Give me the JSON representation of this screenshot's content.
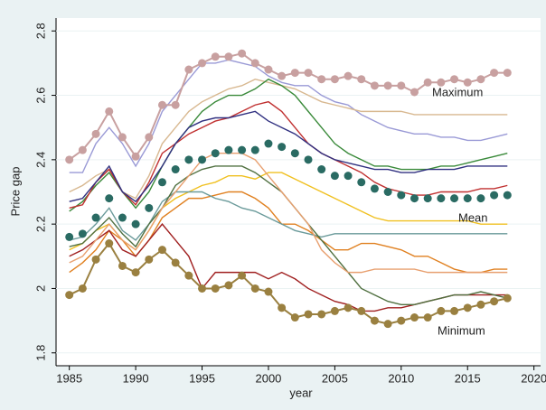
{
  "chart_data": {
    "type": "line",
    "x_label": "year",
    "y_label": "Price gap",
    "x": [
      1985,
      1986,
      1987,
      1988,
      1989,
      1990,
      1991,
      1992,
      1993,
      1994,
      1995,
      1996,
      1997,
      1998,
      1999,
      2000,
      2001,
      2002,
      2003,
      2004,
      2005,
      2006,
      2007,
      2008,
      2009,
      2010,
      2011,
      2012,
      2013,
      2014,
      2015,
      2016,
      2017,
      2018
    ],
    "xlim": [
      1984,
      2020.5
    ],
    "xticks": [
      1985,
      1990,
      1995,
      2000,
      2005,
      2010,
      2015,
      2020
    ],
    "ylim": [
      1.76,
      2.84
    ],
    "yticks": [
      1.8,
      2,
      2.2,
      2.4,
      2.6,
      2.8
    ],
    "series": [
      {
        "color": "#9a9ad6",
        "values": [
          2.36,
          2.36,
          2.45,
          2.5,
          2.45,
          2.38,
          2.45,
          2.55,
          2.6,
          2.65,
          2.7,
          2.7,
          2.71,
          2.7,
          2.69,
          2.66,
          2.64,
          2.63,
          2.63,
          2.6,
          2.58,
          2.57,
          2.54,
          2.52,
          2.5,
          2.49,
          2.48,
          2.48,
          2.47,
          2.47,
          2.46,
          2.46,
          2.47,
          2.48
        ]
      },
      {
        "color": "#d8b890",
        "values": [
          2.3,
          2.32,
          2.35,
          2.37,
          2.3,
          2.28,
          2.35,
          2.45,
          2.5,
          2.55,
          2.58,
          2.6,
          2.62,
          2.63,
          2.65,
          2.64,
          2.63,
          2.62,
          2.6,
          2.58,
          2.57,
          2.56,
          2.55,
          2.55,
          2.55,
          2.55,
          2.54,
          2.54,
          2.54,
          2.54,
          2.54,
          2.54,
          2.54,
          2.54
        ]
      },
      {
        "color": "#3a8a3a",
        "values": [
          2.24,
          2.27,
          2.32,
          2.36,
          2.3,
          2.25,
          2.3,
          2.38,
          2.45,
          2.5,
          2.55,
          2.58,
          2.6,
          2.6,
          2.62,
          2.65,
          2.63,
          2.6,
          2.55,
          2.5,
          2.45,
          2.42,
          2.4,
          2.38,
          2.38,
          2.37,
          2.37,
          2.37,
          2.38,
          2.38,
          2.39,
          2.4,
          2.41,
          2.42
        ]
      },
      {
        "color": "#c03030",
        "values": [
          2.25,
          2.26,
          2.33,
          2.37,
          2.3,
          2.26,
          2.33,
          2.42,
          2.45,
          2.48,
          2.5,
          2.52,
          2.53,
          2.55,
          2.57,
          2.58,
          2.55,
          2.5,
          2.45,
          2.42,
          2.4,
          2.38,
          2.36,
          2.33,
          2.31,
          2.3,
          2.29,
          2.29,
          2.3,
          2.3,
          2.3,
          2.31,
          2.31,
          2.32
        ]
      },
      {
        "color": "#303080",
        "values": [
          2.27,
          2.28,
          2.33,
          2.38,
          2.3,
          2.27,
          2.32,
          2.38,
          2.45,
          2.5,
          2.52,
          2.53,
          2.53,
          2.54,
          2.55,
          2.52,
          2.5,
          2.48,
          2.45,
          2.42,
          2.4,
          2.39,
          2.38,
          2.37,
          2.37,
          2.36,
          2.36,
          2.37,
          2.37,
          2.37,
          2.38,
          2.38,
          2.38,
          2.38
        ]
      },
      {
        "color": "#f0c020",
        "values": [
          2.12,
          2.14,
          2.18,
          2.2,
          2.15,
          2.12,
          2.18,
          2.25,
          2.28,
          2.3,
          2.32,
          2.33,
          2.35,
          2.35,
          2.34,
          2.36,
          2.36,
          2.34,
          2.32,
          2.3,
          2.28,
          2.26,
          2.24,
          2.22,
          2.21,
          2.21,
          2.21,
          2.21,
          2.21,
          2.21,
          2.21,
          2.2,
          2.2,
          2.2
        ]
      },
      {
        "color": "#e08020",
        "values": [
          2.05,
          2.08,
          2.12,
          2.18,
          2.15,
          2.1,
          2.15,
          2.22,
          2.25,
          2.28,
          2.28,
          2.29,
          2.3,
          2.3,
          2.28,
          2.25,
          2.2,
          2.2,
          2.18,
          2.15,
          2.12,
          2.12,
          2.14,
          2.14,
          2.13,
          2.12,
          2.1,
          2.1,
          2.08,
          2.06,
          2.05,
          2.05,
          2.06,
          2.06
        ]
      },
      {
        "color": "#6a9a9a",
        "values": [
          2.15,
          2.16,
          2.2,
          2.25,
          2.18,
          2.15,
          2.2,
          2.27,
          2.3,
          2.3,
          2.3,
          2.28,
          2.27,
          2.25,
          2.24,
          2.22,
          2.2,
          2.18,
          2.17,
          2.16,
          2.17,
          2.17,
          2.17,
          2.17,
          2.17,
          2.17,
          2.17,
          2.17,
          2.17,
          2.17,
          2.17,
          2.17,
          2.17,
          2.17
        ]
      },
      {
        "color": "#a02020",
        "values": [
          2.1,
          2.12,
          2.15,
          2.18,
          2.12,
          2.1,
          2.15,
          2.2,
          2.15,
          2.1,
          2.0,
          2.05,
          2.05,
          2.05,
          2.05,
          2.03,
          2.05,
          2.03,
          2.0,
          1.98,
          1.96,
          1.95,
          1.93,
          1.93,
          1.94,
          1.94,
          1.95,
          1.96,
          1.97,
          1.98,
          1.98,
          1.98,
          1.98,
          1.98
        ]
      },
      {
        "color": "#507040",
        "values": [
          2.13,
          2.14,
          2.18,
          2.22,
          2.17,
          2.13,
          2.2,
          2.25,
          2.32,
          2.35,
          2.37,
          2.38,
          2.38,
          2.38,
          2.36,
          2.33,
          2.3,
          2.25,
          2.2,
          2.15,
          2.1,
          2.05,
          2.0,
          1.98,
          1.96,
          1.95,
          1.95,
          1.96,
          1.97,
          1.98,
          1.98,
          1.99,
          1.98,
          1.97
        ]
      },
      {
        "color": "#e8a070",
        "values": [
          2.08,
          2.1,
          2.15,
          2.2,
          2.15,
          2.12,
          2.18,
          2.25,
          2.3,
          2.35,
          2.4,
          2.42,
          2.42,
          2.42,
          2.4,
          2.35,
          2.3,
          2.25,
          2.2,
          2.12,
          2.08,
          2.05,
          2.05,
          2.06,
          2.06,
          2.06,
          2.06,
          2.05,
          2.05,
          2.05,
          2.05,
          2.05,
          2.05,
          2.05
        ]
      },
      {
        "name": "Maximum",
        "color": "#c8a0a0",
        "markers": true,
        "values": [
          2.4,
          2.43,
          2.48,
          2.55,
          2.47,
          2.41,
          2.47,
          2.57,
          2.57,
          2.68,
          2.7,
          2.72,
          2.72,
          2.73,
          2.7,
          2.68,
          2.66,
          2.67,
          2.67,
          2.65,
          2.65,
          2.66,
          2.65,
          2.63,
          2.63,
          2.63,
          2.61,
          2.64,
          2.64,
          2.65,
          2.64,
          2.65,
          2.67,
          2.67
        ]
      },
      {
        "name": "Minimum",
        "color": "#9a8040",
        "markers": true,
        "values": [
          1.98,
          2.0,
          2.09,
          2.14,
          2.07,
          2.05,
          2.09,
          2.12,
          2.08,
          2.04,
          2.0,
          2.0,
          2.01,
          2.04,
          2.0,
          1.99,
          1.94,
          1.91,
          1.92,
          1.92,
          1.93,
          1.94,
          1.93,
          1.9,
          1.89,
          1.9,
          1.91,
          1.91,
          1.93,
          1.93,
          1.94,
          1.95,
          1.96,
          1.97
        ]
      },
      {
        "name": "Mean",
        "color": "#2a6b63",
        "markers": true,
        "line": false,
        "values": [
          2.16,
          2.17,
          2.22,
          2.28,
          2.22,
          2.2,
          2.25,
          2.33,
          2.37,
          2.4,
          2.4,
          2.42,
          2.43,
          2.43,
          2.43,
          2.45,
          2.44,
          2.42,
          2.4,
          2.37,
          2.35,
          2.35,
          2.33,
          2.31,
          2.3,
          2.29,
          2.28,
          2.28,
          2.28,
          2.28,
          2.28,
          2.28,
          2.29,
          2.29
        ]
      }
    ]
  }
}
